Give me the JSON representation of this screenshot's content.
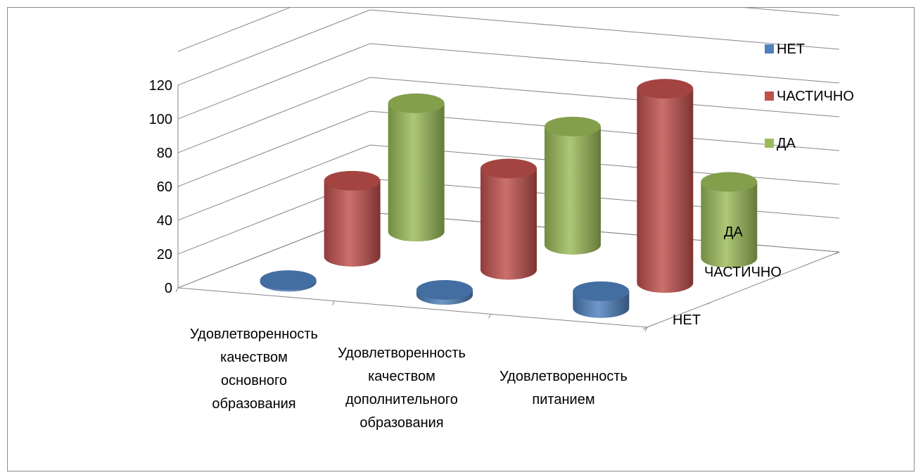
{
  "chart_data": {
    "type": "bar",
    "subtype": "3d-cylinder",
    "title": "",
    "categories": [
      "Удовлетворенность качеством основного образования",
      "Удовлетворенность качеством дополнительного образования",
      "Удовлетворенность питанием"
    ],
    "category_lines": [
      [
        "Удовлетворенность",
        "качеством",
        "основного",
        "образования"
      ],
      [
        "Удовлетворенность",
        "качеством",
        "дополнительного",
        "образования"
      ],
      [
        "Удовлетворенность",
        "питанием"
      ]
    ],
    "series": [
      {
        "name": "НЕТ",
        "color": "#4f81bd",
        "values": [
          1,
          3,
          10
        ]
      },
      {
        "name": "ЧАСТИЧНО",
        "color": "#c0504d",
        "values": [
          45,
          60,
          115
        ]
      },
      {
        "name": "ДА",
        "color": "#9bbb59",
        "values": [
          76,
          70,
          45
        ]
      }
    ],
    "depth_labels": [
      "НЕТ",
      "ЧАСТИЧНО",
      "ДА"
    ],
    "y_ticks": [
      0,
      20,
      40,
      60,
      80,
      100,
      120
    ],
    "ylim": [
      0,
      120
    ],
    "grid": true,
    "legend_position": "right"
  }
}
